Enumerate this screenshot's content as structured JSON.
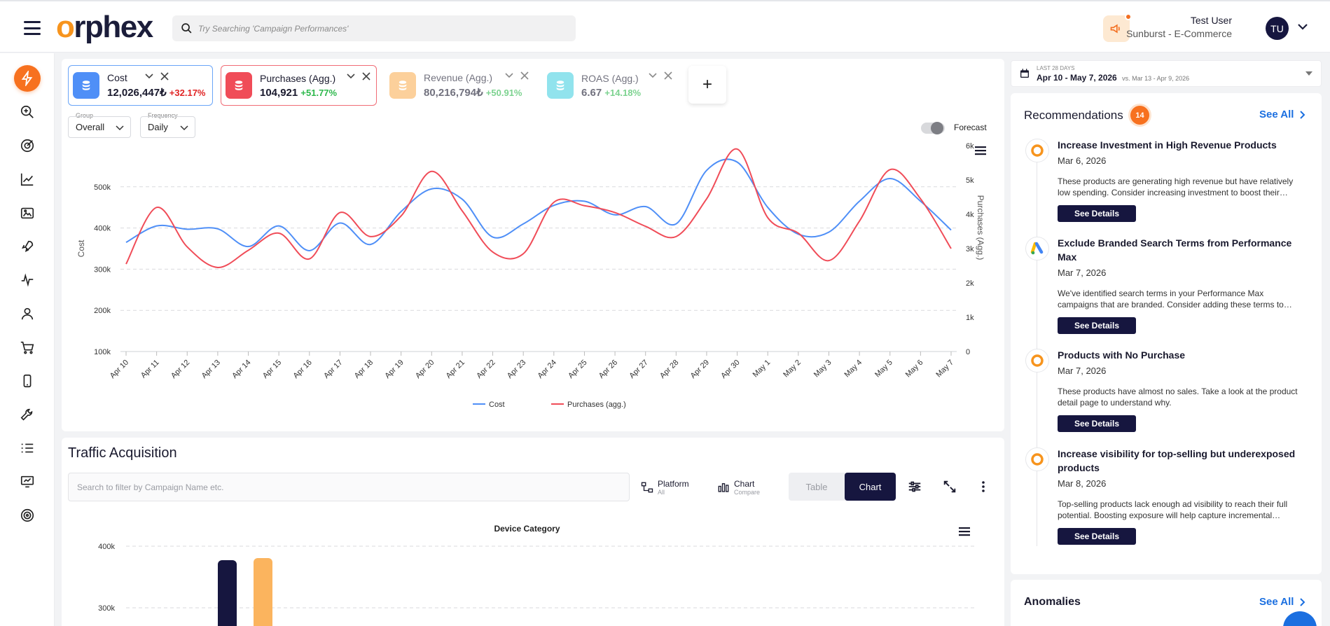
{
  "header": {
    "logo_text": "orphex",
    "search_placeholder": "Try Searching 'Campaign Performances'",
    "user_name": "Test User",
    "user_company": "Sunburst - E-Commerce",
    "avatar_initials": "TU"
  },
  "sidebar": {
    "items": [
      "lightning-icon",
      "zoom-search-icon",
      "target-icon",
      "trend-chart-icon",
      "image-folder-icon",
      "rocket-icon",
      "pulse-icon",
      "user-icon",
      "cart-icon",
      "mobile-icon",
      "wrench-icon",
      "list-icon",
      "presentation-icon",
      "goal-icon"
    ],
    "active_index": 0
  },
  "metrics": [
    {
      "name": "Cost",
      "value": "12,026,447₺",
      "change": "+32.17%",
      "change_color": "#e02424",
      "color": "#4f8ff7",
      "selected": true
    },
    {
      "name": "Purchases (Agg.)",
      "value": "104,921",
      "change": "+51.77%",
      "change_color": "#2db84c",
      "color": "#f04c58",
      "selected": true
    },
    {
      "name": "Revenue (Agg.)",
      "value": "80,216,794₺",
      "change": "+50.91%",
      "change_color": "#2db84c",
      "color": "#fbb45e",
      "selected": false
    },
    {
      "name": "ROAS (Agg.)",
      "value": "6.67",
      "change": "+14.18%",
      "change_color": "#2db84c",
      "color": "#4fd3e3",
      "selected": false
    }
  ],
  "add_metric_label": "+",
  "controls": {
    "group_label": "Group",
    "group_value": "Overall",
    "frequency_label": "Frequency",
    "frequency_value": "Daily",
    "forecast_label": "Forecast"
  },
  "chart_data": {
    "type": "line",
    "x": [
      "Apr 10",
      "Apr 11",
      "Apr 12",
      "Apr 13",
      "Apr 14",
      "Apr 15",
      "Apr 16",
      "Apr 17",
      "Apr 18",
      "Apr 19",
      "Apr 20",
      "Apr 21",
      "Apr 22",
      "Apr 23",
      "Apr 24",
      "Apr 25",
      "Apr 26",
      "Apr 27",
      "Apr 28",
      "Apr 29",
      "Apr 30",
      "May 1",
      "May 2",
      "May 3",
      "May 4",
      "May 5",
      "May 6",
      "May 7"
    ],
    "ylabel": "Cost",
    "y2label": "Purchases (Agg.)",
    "ylim": [
      100000,
      600000
    ],
    "y_ticks": [
      "100k",
      "200k",
      "300k",
      "400k",
      "500k"
    ],
    "y2lim": [
      0,
      6000
    ],
    "y2_ticks": [
      "0",
      "1k",
      "2k",
      "3k",
      "4k",
      "5k",
      "6k"
    ],
    "grid": true,
    "legend_position": "bottom",
    "series": [
      {
        "name": "Cost",
        "axis": "left",
        "color": "#4f8ff7",
        "values": [
          365000,
          405000,
          397000,
          398000,
          355000,
          405000,
          345000,
          412000,
          360000,
          440000,
          495000,
          470000,
          378000,
          410000,
          455000,
          465000,
          432000,
          452000,
          410000,
          540000,
          560000,
          450000,
          385000,
          390000,
          465000,
          520000,
          465000,
          395000
        ]
      },
      {
        "name": "Purchases (agg.)",
        "axis": "right",
        "color": "#f04c58",
        "values": [
          2550,
          4200,
          3050,
          2450,
          2950,
          3450,
          2700,
          4050,
          3350,
          3950,
          5250,
          4100,
          2900,
          2850,
          4350,
          4250,
          4050,
          3650,
          3350,
          4450,
          5900,
          3900,
          3450,
          2650,
          3800,
          5300,
          4450,
          3000
        ]
      }
    ]
  },
  "traffic": {
    "title": "Traffic Acquisition",
    "filter_placeholder": "Search to filter by Campaign Name etc.",
    "platform_label": "Platform",
    "platform_sub": "All",
    "chart_label": "Chart",
    "chart_sub": "Compare",
    "table_tab": "Table",
    "chart_tab": "Chart",
    "chart_title": "Device Category",
    "y_ticks": [
      "400k",
      "300k"
    ]
  },
  "date_range": {
    "label": "LAST 28 DAYS",
    "range": "Apr 10 - May 7, 2026",
    "compare": "vs. Mar 13 - Apr 9, 2026"
  },
  "recommendations": {
    "title": "Recommendations",
    "count": "14",
    "see_all": "See All",
    "items": [
      {
        "source": "orphex",
        "title": "Increase Investment in High Revenue Products",
        "date": "Mar 6, 2026",
        "desc": "These products are generating high revenue but have relatively low spending. Consider increasing investment to boost their…",
        "button": "See Details"
      },
      {
        "source": "google-ads",
        "title": "Exclude Branded Search Terms from Performance Max",
        "date": "Mar 7, 2026",
        "desc": "We've identified search terms in your Performance Max campaigns that are branded. Consider adding these terms to…",
        "button": "See Details"
      },
      {
        "source": "orphex",
        "title": "Products with No Purchase",
        "date": "Mar 7, 2026",
        "desc": "These products have almost no sales. Take a look at the product detail page to understand why.",
        "button": "See Details"
      },
      {
        "source": "orphex",
        "title": "Increase visibility for top-selling but underexposed products",
        "date": "Mar 8, 2026",
        "desc": "Top-selling products lack enough ad visibility to reach their full potential. Boosting exposure will help capture incremental…",
        "button": "See Details"
      }
    ]
  },
  "anomalies": {
    "title": "Anomalies",
    "see_all": "See All"
  }
}
